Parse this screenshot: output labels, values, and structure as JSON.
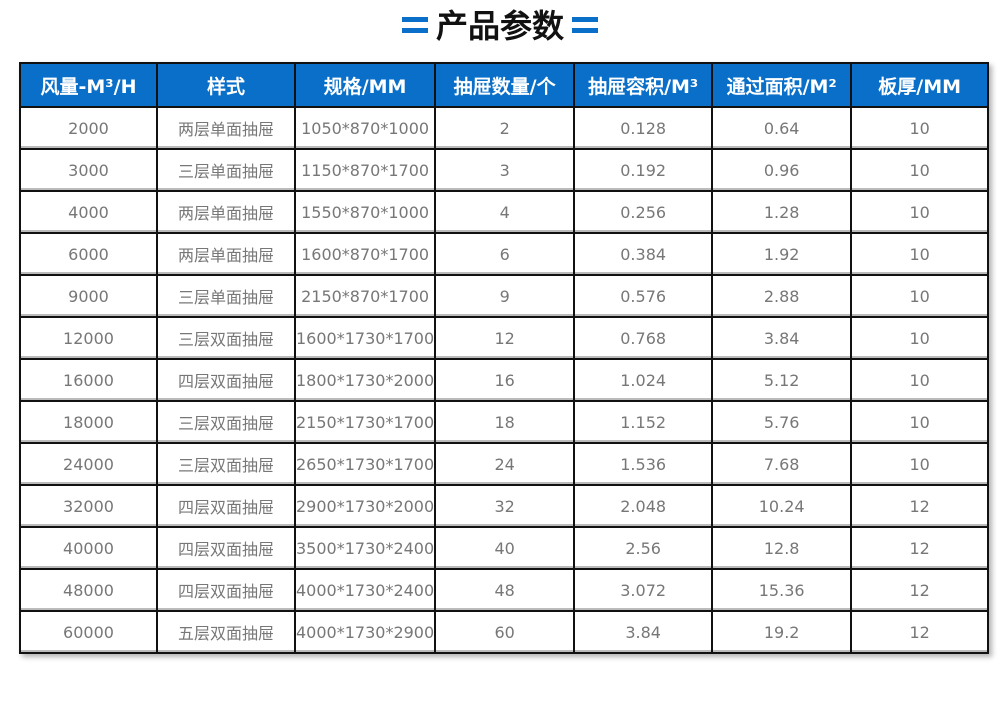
{
  "title": "产品参数",
  "accent_color": "#0a6fc8",
  "columns": [
    "风量-M³/H",
    "样式",
    "规格/MM",
    "抽屉数量/个",
    "抽屉容积/M³",
    "通过面积/M²",
    "板厚/MM"
  ],
  "rows": [
    [
      "2000",
      "两层单面抽屉",
      "1050*870*1000",
      "2",
      "0.128",
      "0.64",
      "10"
    ],
    [
      "3000",
      "三层单面抽屉",
      "1150*870*1700",
      "3",
      "0.192",
      "0.96",
      "10"
    ],
    [
      "4000",
      "两层单面抽屉",
      "1550*870*1000",
      "4",
      "0.256",
      "1.28",
      "10"
    ],
    [
      "6000",
      "两层单面抽屉",
      "1600*870*1700",
      "6",
      "0.384",
      "1.92",
      "10"
    ],
    [
      "9000",
      "三层单面抽屉",
      "2150*870*1700",
      "9",
      "0.576",
      "2.88",
      "10"
    ],
    [
      "12000",
      "三层双面抽屉",
      "1600*1730*1700",
      "12",
      "0.768",
      "3.84",
      "10"
    ],
    [
      "16000",
      "四层双面抽屉",
      "1800*1730*2000",
      "16",
      "1.024",
      "5.12",
      "10"
    ],
    [
      "18000",
      "三层双面抽屉",
      "2150*1730*1700",
      "18",
      "1.152",
      "5.76",
      "10"
    ],
    [
      "24000",
      "三层双面抽屉",
      "2650*1730*1700",
      "24",
      "1.536",
      "7.68",
      "10"
    ],
    [
      "32000",
      "四层双面抽屉",
      "2900*1730*2000",
      "32",
      "2.048",
      "10.24",
      "12"
    ],
    [
      "40000",
      "四层双面抽屉",
      "3500*1730*2400",
      "40",
      "2.56",
      "12.8",
      "12"
    ],
    [
      "48000",
      "四层双面抽屉",
      "4000*1730*2400",
      "48",
      "3.072",
      "15.36",
      "12"
    ],
    [
      "60000",
      "五层双面抽屉",
      "4000*1730*2900",
      "60",
      "3.84",
      "19.2",
      "12"
    ]
  ]
}
